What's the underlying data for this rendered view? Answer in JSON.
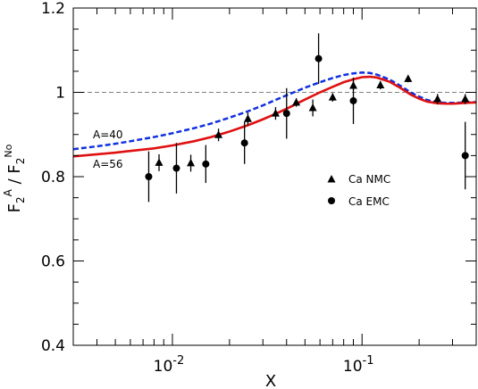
{
  "chart_data": {
    "type": "scatter",
    "xlabel": "X",
    "ylabel": "F2^A / F2^No",
    "xscale": "log",
    "xlim": [
      0.003,
      0.4
    ],
    "ylim": [
      0.4,
      1.2
    ],
    "grid": false,
    "reference_line": {
      "y": 1.0,
      "style": "dashed",
      "color": "#808080"
    },
    "y_ticks": [
      "0.4",
      "0.6",
      "0.8",
      "1",
      "1.2"
    ],
    "x_ticks": [
      {
        "base": "10",
        "exp": "-2",
        "value": 0.01
      },
      {
        "base": "10",
        "exp": "-1",
        "value": 0.1
      }
    ],
    "legend": {
      "position": "right-middle",
      "entries": [
        {
          "label": "Ca  NMC",
          "marker": "triangle"
        },
        {
          "label": "Ca  EMC",
          "marker": "circle"
        }
      ]
    },
    "curve_labels": [
      {
        "text": "A=40",
        "series": "A=40"
      },
      {
        "text": "A=56",
        "series": "A=56"
      }
    ],
    "curves": [
      {
        "name": "A=40",
        "style": "dashed",
        "color": "#1030e0",
        "x": [
          0.003,
          0.004,
          0.005,
          0.006,
          0.008,
          0.01,
          0.013,
          0.016,
          0.02,
          0.025,
          0.03,
          0.035,
          0.04,
          0.05,
          0.06,
          0.07,
          0.08,
          0.09,
          0.1,
          0.11,
          0.12,
          0.14,
          0.16,
          0.18,
          0.2,
          0.22,
          0.25,
          0.28,
          0.3,
          0.35,
          0.4
        ],
        "y": [
          0.865,
          0.872,
          0.878,
          0.884,
          0.894,
          0.903,
          0.915,
          0.926,
          0.94,
          0.955,
          0.969,
          0.982,
          0.993,
          1.011,
          1.024,
          1.034,
          1.041,
          1.045,
          1.047,
          1.046,
          1.042,
          1.03,
          1.015,
          1.0,
          0.99,
          0.982,
          0.976,
          0.975,
          0.975,
          0.976,
          0.977
        ]
      },
      {
        "name": "A=56",
        "style": "solid",
        "color": "#e01010",
        "x": [
          0.003,
          0.004,
          0.005,
          0.006,
          0.008,
          0.01,
          0.013,
          0.016,
          0.02,
          0.025,
          0.03,
          0.035,
          0.04,
          0.05,
          0.06,
          0.07,
          0.08,
          0.09,
          0.1,
          0.11,
          0.12,
          0.14,
          0.16,
          0.18,
          0.2,
          0.22,
          0.25,
          0.28,
          0.3,
          0.35,
          0.4
        ],
        "y": [
          0.848,
          0.853,
          0.857,
          0.861,
          0.867,
          0.874,
          0.884,
          0.894,
          0.907,
          0.922,
          0.936,
          0.949,
          0.961,
          0.983,
          1.0,
          1.013,
          1.024,
          1.031,
          1.036,
          1.037,
          1.035,
          1.025,
          1.01,
          0.995,
          0.985,
          0.978,
          0.974,
          0.973,
          0.973,
          0.975,
          0.976
        ]
      }
    ],
    "series": [
      {
        "name": "Ca  NMC",
        "marker": "triangle",
        "points": [
          {
            "x": 0.0085,
            "y": 0.833,
            "err": 0.02
          },
          {
            "x": 0.0125,
            "y": 0.832,
            "err": 0.02
          },
          {
            "x": 0.0175,
            "y": 0.899,
            "err": 0.015
          },
          {
            "x": 0.025,
            "y": 0.937,
            "err": 0.015
          },
          {
            "x": 0.035,
            "y": 0.95,
            "err": 0.015
          },
          {
            "x": 0.045,
            "y": 0.976,
            "err": 0.01
          },
          {
            "x": 0.055,
            "y": 0.963,
            "err": 0.02
          },
          {
            "x": 0.07,
            "y": 0.988,
            "err": 0.01
          },
          {
            "x": 0.09,
            "y": 1.016,
            "err": 0.01
          },
          {
            "x": 0.125,
            "y": 1.017,
            "err": 0.01
          },
          {
            "x": 0.175,
            "y": 1.032,
            "err": 0.008
          },
          {
            "x": 0.25,
            "y": 0.984,
            "err": 0.012
          },
          {
            "x": 0.35,
            "y": 0.984,
            "err": 0.012
          }
        ]
      },
      {
        "name": "Ca  EMC",
        "marker": "circle",
        "points": [
          {
            "x": 0.0075,
            "y": 0.8,
            "err": 0.06
          },
          {
            "x": 0.0105,
            "y": 0.82,
            "err": 0.06
          },
          {
            "x": 0.015,
            "y": 0.83,
            "err": 0.045
          },
          {
            "x": 0.024,
            "y": 0.88,
            "err": 0.05
          },
          {
            "x": 0.04,
            "y": 0.95,
            "err": 0.06
          },
          {
            "x": 0.059,
            "y": 1.08,
            "err": 0.06
          },
          {
            "x": 0.09,
            "y": 0.98,
            "err": 0.055
          },
          {
            "x": 0.35,
            "y": 0.85,
            "err": 0.08
          }
        ]
      }
    ]
  }
}
